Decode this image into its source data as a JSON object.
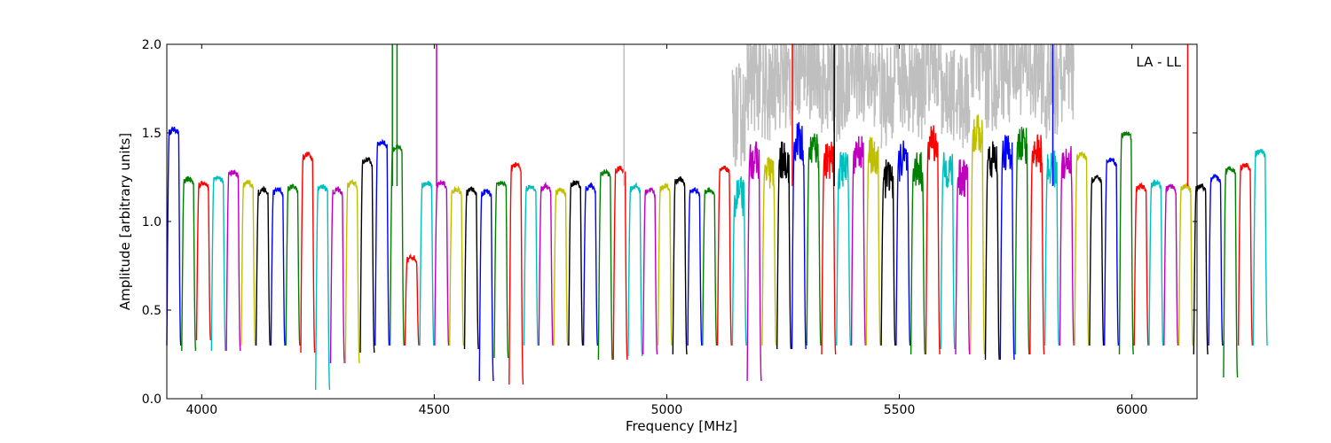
{
  "chart_data": {
    "type": "line",
    "title": "",
    "xlabel": "Frequency [MHz]",
    "ylabel": "Amplitude [arbitrary units]",
    "annotation": "LA - LL",
    "xlim": [
      3925,
      6140
    ],
    "ylim": [
      0.0,
      2.0
    ],
    "x_ticks": [
      4000,
      4500,
      5000,
      5500,
      6000
    ],
    "y_ticks": [
      0.0,
      0.5,
      1.0,
      1.5,
      2.0
    ],
    "y_tick_labels": [
      "0.0",
      "0.5",
      "1.0",
      "1.5",
      "2.0"
    ],
    "grid": false,
    "legend": "none",
    "background_series": {
      "name": "",
      "color": "#bfbfbf"
    },
    "palette": [
      "#0000ff",
      "#008000",
      "#ff0000",
      "#00bfbf",
      "#bf00bf",
      "#bfbf00",
      "#000000"
    ],
    "channel_width_mhz": 32,
    "channel_start_mhz": 3925,
    "channel_levels": [
      1.52,
      1.24,
      1.22,
      1.25,
      1.28,
      1.22,
      1.18,
      1.18,
      1.2,
      1.38,
      1.2,
      1.18,
      1.22,
      1.35,
      1.45,
      1.42,
      0.8,
      1.22,
      1.22,
      1.18,
      1.18,
      1.17,
      1.22,
      1.32,
      1.2,
      1.2,
      1.18,
      1.22,
      1.2,
      1.28,
      1.3,
      1.2,
      1.18,
      1.2,
      1.24,
      1.18,
      1.18,
      1.3,
      1.15,
      1.35,
      1.28,
      1.35,
      1.45,
      1.42,
      1.35,
      1.3,
      1.4,
      1.38,
      1.25,
      1.35,
      1.3,
      1.45,
      1.3,
      1.25,
      1.5,
      1.35,
      1.4,
      1.45,
      1.4,
      1.3,
      1.35,
      1.38,
      1.25,
      1.35,
      1.5,
      1.2,
      1.22,
      1.2,
      1.2,
      1.2,
      1.25,
      1.3,
      1.32,
      1.4
    ],
    "channel_minimums": [
      0.3,
      0.27,
      0.33,
      0.27,
      0.27,
      0.3,
      0.3,
      0.3,
      0.3,
      0.26,
      0.05,
      0.2,
      0.2,
      0.26,
      0.3,
      0.3,
      0.3,
      0.3,
      0.3,
      0.3,
      0.28,
      0.1,
      0.23,
      0.08,
      0.3,
      0.3,
      0.3,
      0.3,
      0.3,
      0.22,
      0.22,
      0.24,
      0.25,
      0.3,
      0.25,
      0.3,
      0.3,
      0.3,
      0.3,
      0.1,
      0.3,
      0.28,
      0.28,
      0.3,
      0.25,
      0.3,
      0.3,
      0.3,
      0.3,
      0.3,
      0.25,
      0.25,
      0.28,
      0.25,
      0.25,
      0.22,
      0.22,
      0.25,
      0.25,
      0.3,
      0.3,
      0.3,
      0.3,
      0.3,
      0.25,
      0.3,
      0.3,
      0.3,
      0.3,
      0.25,
      0.3,
      0.12,
      0.3,
      0.3
    ],
    "spikes": [
      {
        "x": 4410,
        "y": 2.0,
        "color": "#008000"
      },
      {
        "x": 4420,
        "y": 2.0,
        "color": "#008000"
      },
      {
        "x": 4505,
        "y": 2.0,
        "color": "#bf00bf"
      },
      {
        "x": 4908,
        "y": 2.0,
        "color": "#bfbfbf"
      },
      {
        "x": 5270,
        "y": 2.0,
        "color": "#ff0000"
      },
      {
        "x": 5360,
        "y": 2.0,
        "color": "#000000"
      },
      {
        "x": 5830,
        "y": 2.0,
        "color": "#0000ff"
      },
      {
        "x": 6120,
        "y": 2.0,
        "color": "#ff0000"
      }
    ]
  }
}
